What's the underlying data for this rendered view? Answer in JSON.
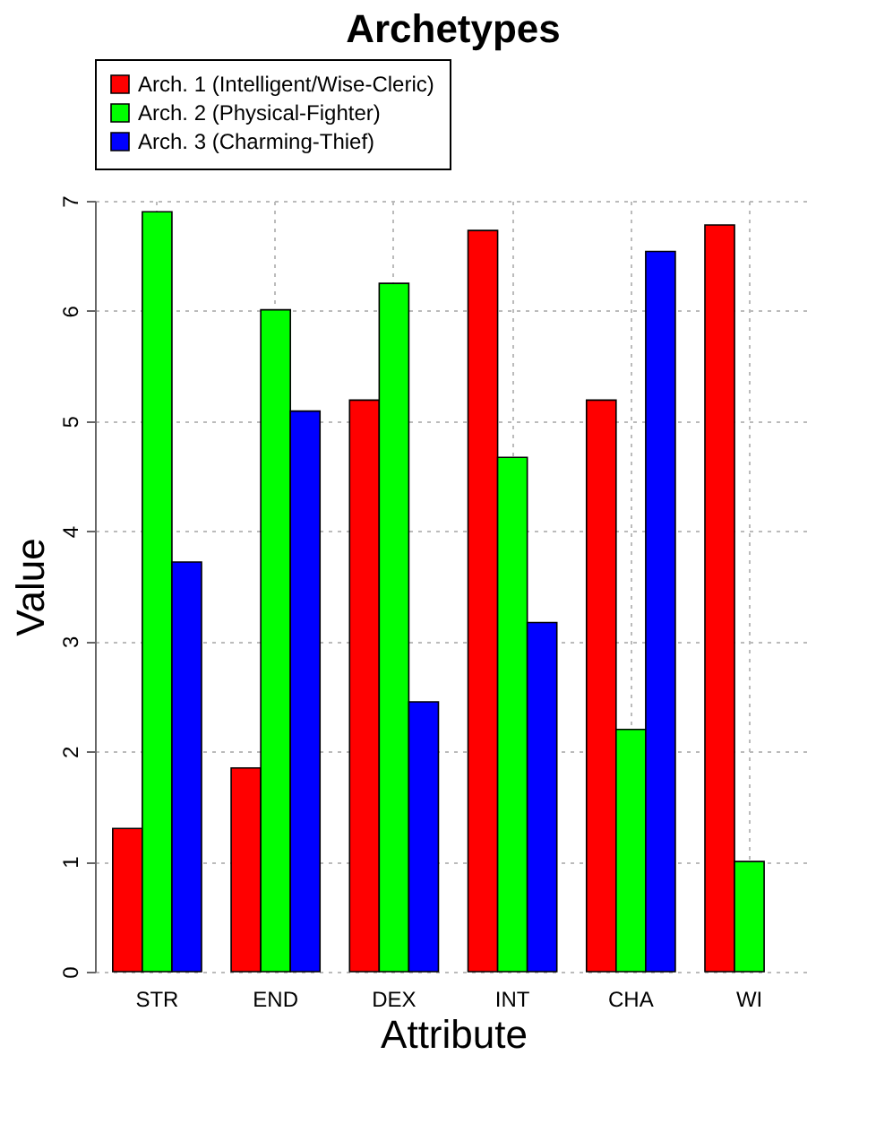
{
  "chart_data": {
    "type": "bar",
    "title": "Archetypes",
    "xlabel": "Attribute",
    "ylabel": "Value",
    "categories": [
      "STR",
      "END",
      "DEX",
      "INT",
      "CHA",
      "WI"
    ],
    "series": [
      {
        "name": "Arch. 1 (Intelligent/Wise-Cleric)",
        "color": "#ff0000",
        "values": [
          1.3,
          1.85,
          5.19,
          6.73,
          5.19,
          6.78
        ]
      },
      {
        "name": "Arch. 2 (Physical-Fighter)",
        "color": "#00ff00",
        "values": [
          6.9,
          6.01,
          6.25,
          4.67,
          2.2,
          1.0
        ]
      },
      {
        "name": "Arch. 3 (Charming-Thief)",
        "color": "#0000ff",
        "values": [
          3.72,
          5.09,
          2.45,
          3.17,
          6.54,
          null
        ]
      }
    ],
    "ylim": [
      0,
      7
    ],
    "yticks": [
      0,
      1,
      2,
      3,
      4,
      5,
      6,
      7
    ],
    "grid": true,
    "legend": "top"
  }
}
